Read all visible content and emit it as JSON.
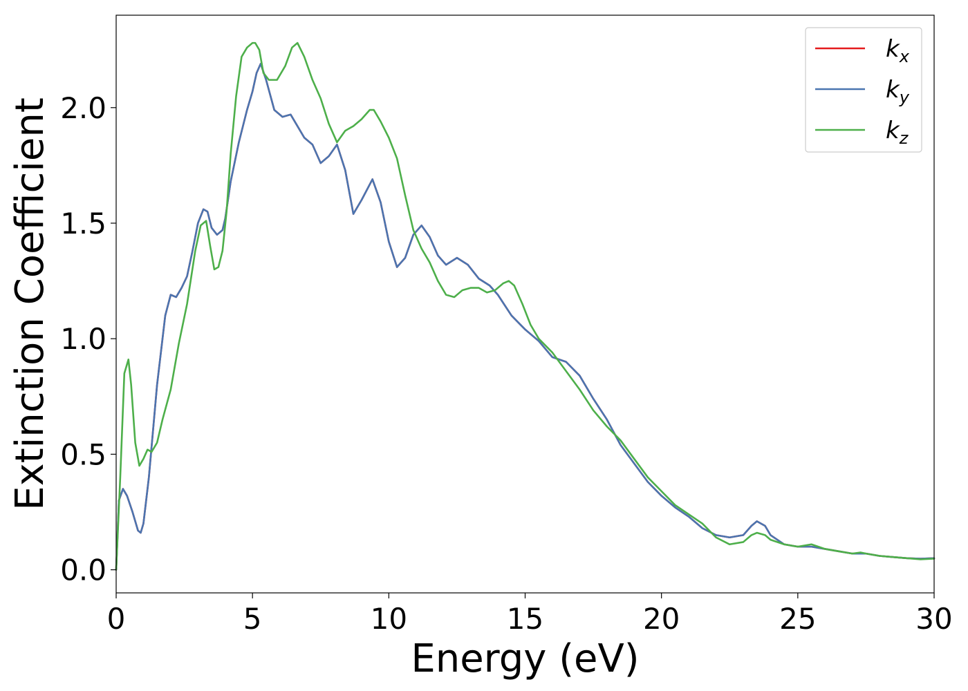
{
  "chart_data": {
    "type": "line",
    "title": "",
    "xlabel": "Energy (eV)",
    "ylabel": "Extinction Coefficient",
    "xlim": [
      0,
      30
    ],
    "ylim": [
      -0.1,
      2.4
    ],
    "xticks": [
      0,
      5,
      10,
      15,
      20,
      25,
      30
    ],
    "xtick_labels": [
      "0",
      "5",
      "10",
      "15",
      "20",
      "25",
      "30"
    ],
    "yticks": [
      0.0,
      0.5,
      1.0,
      1.5,
      2.0
    ],
    "ytick_labels": [
      "0.0",
      "0.5",
      "1.0",
      "1.5",
      "2.0"
    ],
    "grid": false,
    "legend_position": "top-right",
    "series": [
      {
        "name": "k",
        "subscript": "x",
        "color": "#e41a1c",
        "x": [
          0,
          0.1,
          0.25,
          0.4,
          0.6,
          0.8,
          0.9,
          1.0,
          1.2,
          1.5,
          1.8,
          2.0,
          2.2,
          2.4,
          2.6,
          2.8,
          3.0,
          3.2,
          3.35,
          3.5,
          3.7,
          3.9,
          4.0,
          4.2,
          4.5,
          4.8,
          5.0,
          5.15,
          5.3,
          5.5,
          5.8,
          6.1,
          6.4,
          6.6,
          6.9,
          7.2,
          7.5,
          7.8,
          8.1,
          8.4,
          8.7,
          9.0,
          9.4,
          9.7,
          10.0,
          10.3,
          10.6,
          10.9,
          11.2,
          11.5,
          11.8,
          12.1,
          12.5,
          12.9,
          13.3,
          13.7,
          14.0,
          14.5,
          15.0,
          15.5,
          16.0,
          16.5,
          17.0,
          17.5,
          18.0,
          18.5,
          19.0,
          19.5,
          20.0,
          20.5,
          21.0,
          21.5,
          22.0,
          22.5,
          23.0,
          23.3,
          23.5,
          23.8,
          24.0,
          24.5,
          25.0,
          25.5,
          26.0,
          26.5,
          27.0,
          27.5,
          28.0,
          28.5,
          29.0,
          29.5,
          30.0
        ],
        "y": [
          0.0,
          0.3,
          0.35,
          0.32,
          0.25,
          0.17,
          0.16,
          0.2,
          0.4,
          0.8,
          1.1,
          1.19,
          1.18,
          1.22,
          1.27,
          1.38,
          1.5,
          1.56,
          1.55,
          1.48,
          1.45,
          1.47,
          1.52,
          1.68,
          1.85,
          1.99,
          2.07,
          2.15,
          2.19,
          2.12,
          1.99,
          1.96,
          1.97,
          1.93,
          1.87,
          1.84,
          1.76,
          1.79,
          1.84,
          1.73,
          1.54,
          1.6,
          1.69,
          1.59,
          1.42,
          1.31,
          1.35,
          1.45,
          1.49,
          1.44,
          1.36,
          1.32,
          1.35,
          1.32,
          1.26,
          1.23,
          1.19,
          1.1,
          1.04,
          0.99,
          0.92,
          0.9,
          0.84,
          0.74,
          0.65,
          0.54,
          0.46,
          0.38,
          0.32,
          0.27,
          0.23,
          0.18,
          0.15,
          0.14,
          0.15,
          0.19,
          0.21,
          0.19,
          0.15,
          0.11,
          0.1,
          0.1,
          0.09,
          0.08,
          0.07,
          0.07,
          0.06,
          0.055,
          0.05,
          0.048,
          0.05
        ]
      },
      {
        "name": "k",
        "subscript": "y",
        "color": "#4a75b0",
        "x": [
          0,
          0.1,
          0.25,
          0.4,
          0.6,
          0.8,
          0.9,
          1.0,
          1.2,
          1.5,
          1.8,
          2.0,
          2.2,
          2.4,
          2.6,
          2.8,
          3.0,
          3.2,
          3.35,
          3.5,
          3.7,
          3.9,
          4.0,
          4.2,
          4.5,
          4.8,
          5.0,
          5.15,
          5.3,
          5.5,
          5.8,
          6.1,
          6.4,
          6.6,
          6.9,
          7.2,
          7.5,
          7.8,
          8.1,
          8.4,
          8.7,
          9.0,
          9.4,
          9.7,
          10.0,
          10.3,
          10.6,
          10.9,
          11.2,
          11.5,
          11.8,
          12.1,
          12.5,
          12.9,
          13.3,
          13.7,
          14.0,
          14.5,
          15.0,
          15.5,
          16.0,
          16.5,
          17.0,
          17.5,
          18.0,
          18.5,
          19.0,
          19.5,
          20.0,
          20.5,
          21.0,
          21.5,
          22.0,
          22.5,
          23.0,
          23.3,
          23.5,
          23.8,
          24.0,
          24.5,
          25.0,
          25.5,
          26.0,
          26.5,
          27.0,
          27.5,
          28.0,
          28.5,
          29.0,
          29.5,
          30.0
        ],
        "y": [
          0.0,
          0.3,
          0.35,
          0.32,
          0.25,
          0.17,
          0.16,
          0.2,
          0.4,
          0.8,
          1.1,
          1.19,
          1.18,
          1.22,
          1.27,
          1.38,
          1.5,
          1.56,
          1.55,
          1.48,
          1.45,
          1.47,
          1.52,
          1.68,
          1.85,
          1.99,
          2.07,
          2.15,
          2.19,
          2.12,
          1.99,
          1.96,
          1.97,
          1.93,
          1.87,
          1.84,
          1.76,
          1.79,
          1.84,
          1.73,
          1.54,
          1.6,
          1.69,
          1.59,
          1.42,
          1.31,
          1.35,
          1.45,
          1.49,
          1.44,
          1.36,
          1.32,
          1.35,
          1.32,
          1.26,
          1.23,
          1.19,
          1.1,
          1.04,
          0.99,
          0.92,
          0.9,
          0.84,
          0.74,
          0.65,
          0.54,
          0.46,
          0.38,
          0.32,
          0.27,
          0.23,
          0.18,
          0.15,
          0.14,
          0.15,
          0.19,
          0.21,
          0.19,
          0.15,
          0.11,
          0.1,
          0.1,
          0.09,
          0.08,
          0.07,
          0.07,
          0.06,
          0.055,
          0.05,
          0.048,
          0.05
        ]
      },
      {
        "name": "k",
        "subscript": "z",
        "color": "#4daf4a",
        "x": [
          0,
          0.15,
          0.3,
          0.45,
          0.55,
          0.7,
          0.85,
          1.0,
          1.15,
          1.3,
          1.5,
          1.7,
          2.0,
          2.3,
          2.6,
          2.9,
          3.1,
          3.3,
          3.45,
          3.6,
          3.75,
          3.9,
          4.05,
          4.2,
          4.4,
          4.6,
          4.8,
          5.0,
          5.1,
          5.25,
          5.4,
          5.6,
          5.9,
          6.2,
          6.45,
          6.65,
          6.9,
          7.2,
          7.5,
          7.8,
          8.1,
          8.4,
          8.7,
          9.0,
          9.3,
          9.45,
          9.7,
          10.0,
          10.3,
          10.6,
          10.9,
          11.2,
          11.5,
          11.8,
          12.1,
          12.4,
          12.7,
          13.0,
          13.3,
          13.6,
          13.9,
          14.2,
          14.4,
          14.6,
          14.9,
          15.2,
          15.5,
          16.0,
          16.5,
          17.0,
          17.5,
          18.0,
          18.5,
          19.0,
          19.5,
          20.0,
          20.5,
          21.0,
          21.5,
          22.0,
          22.5,
          23.0,
          23.3,
          23.5,
          23.8,
          24.0,
          24.5,
          25.0,
          25.5,
          26.0,
          26.5,
          27.0,
          27.3,
          27.5,
          28.0,
          28.5,
          29.0,
          29.5,
          30.0
        ],
        "y": [
          0.0,
          0.4,
          0.85,
          0.91,
          0.8,
          0.55,
          0.45,
          0.48,
          0.52,
          0.51,
          0.55,
          0.65,
          0.78,
          0.98,
          1.15,
          1.38,
          1.49,
          1.51,
          1.4,
          1.3,
          1.31,
          1.38,
          1.55,
          1.8,
          2.05,
          2.22,
          2.26,
          2.28,
          2.28,
          2.25,
          2.15,
          2.12,
          2.12,
          2.18,
          2.26,
          2.28,
          2.22,
          2.12,
          2.04,
          1.93,
          1.85,
          1.9,
          1.92,
          1.95,
          1.99,
          1.99,
          1.94,
          1.87,
          1.78,
          1.62,
          1.47,
          1.39,
          1.33,
          1.25,
          1.19,
          1.18,
          1.21,
          1.22,
          1.22,
          1.2,
          1.21,
          1.24,
          1.25,
          1.23,
          1.15,
          1.06,
          1.0,
          0.94,
          0.86,
          0.78,
          0.69,
          0.62,
          0.56,
          0.48,
          0.4,
          0.34,
          0.28,
          0.24,
          0.2,
          0.14,
          0.11,
          0.12,
          0.15,
          0.16,
          0.15,
          0.13,
          0.11,
          0.1,
          0.11,
          0.09,
          0.08,
          0.07,
          0.075,
          0.07,
          0.06,
          0.055,
          0.05,
          0.045,
          0.048
        ]
      }
    ]
  }
}
